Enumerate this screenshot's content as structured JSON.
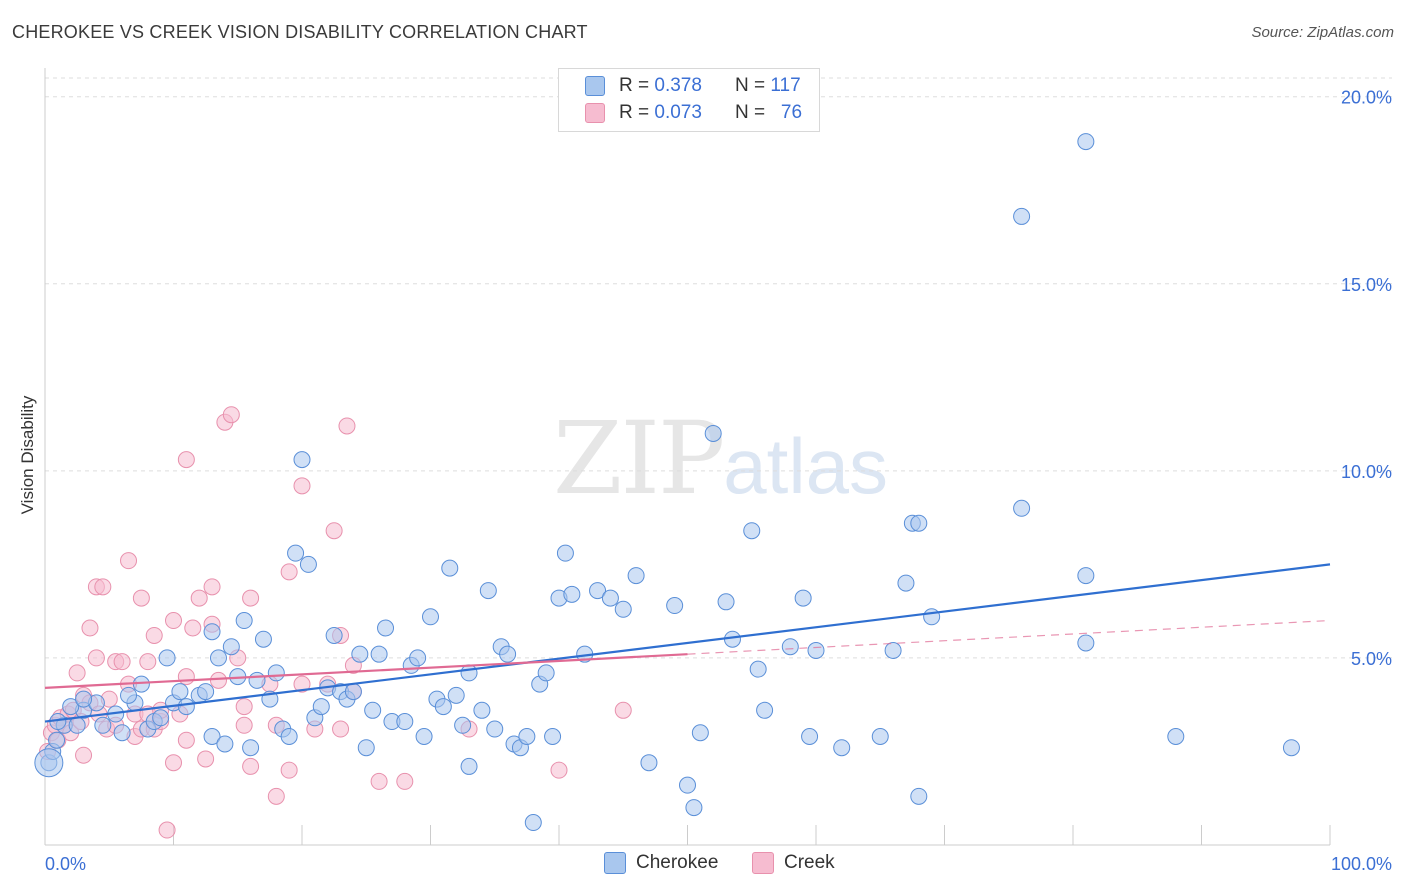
{
  "title": "CHEROKEE VS CREEK VISION DISABILITY CORRELATION CHART",
  "source": "Source: ZipAtlas.com",
  "watermark": {
    "zip": "ZIP",
    "atlas": "atlas"
  },
  "legend_top": {
    "rows": [
      {
        "r_label": "R =",
        "r_value": "0.378",
        "n_label": "N =",
        "n_value": "117"
      },
      {
        "r_label": "R =",
        "r_value": "0.073",
        "n_label": "N =",
        "n_value": "76"
      }
    ]
  },
  "colors": {
    "cherokee_fill": "#a9c7ee",
    "cherokee_stroke": "#5a8fd8",
    "cherokee_line": "#2f6fd0",
    "creek_fill": "#f6bcd0",
    "creek_stroke": "#e891ad",
    "creek_line": "#e06a93",
    "axis_label": "#3b6fd4",
    "grid": "#dddddd"
  },
  "chart_data": {
    "type": "scatter",
    "title": "CHEROKEE VS CREEK VISION DISABILITY CORRELATION CHART",
    "xlabel": "",
    "ylabel": "Vision Disability",
    "xlim": [
      0,
      100
    ],
    "ylim": [
      0,
      20
    ],
    "x_tick_labels": [
      "0.0%",
      "100.0%"
    ],
    "y_ticks": [
      5,
      10,
      15,
      20
    ],
    "y_tick_labels": [
      "5.0%",
      "10.0%",
      "15.0%",
      "20.0%"
    ],
    "grid": true,
    "legend_position": "top-center",
    "series": [
      {
        "name": "Cherokee",
        "r": 0.378,
        "n": 117,
        "trend": {
          "x": [
            0,
            100
          ],
          "y": [
            3.3,
            7.5
          ]
        },
        "points": [
          [
            0.3,
            2.2
          ],
          [
            0.6,
            2.5
          ],
          [
            0.9,
            2.8
          ],
          [
            1.5,
            3.2
          ],
          [
            2.5,
            3.2
          ],
          [
            3,
            3.6
          ],
          [
            4,
            3.8
          ],
          [
            4.5,
            3.2
          ],
          [
            5.5,
            3.5
          ],
          [
            6,
            3
          ],
          [
            7,
            3.8
          ],
          [
            7.5,
            4.3
          ],
          [
            8,
            3.1
          ],
          [
            8.5,
            3.3
          ],
          [
            9,
            3.4
          ],
          [
            9.5,
            5
          ],
          [
            10,
            3.8
          ],
          [
            10.5,
            4.1
          ],
          [
            11,
            3.7
          ],
          [
            12,
            4
          ],
          [
            12.5,
            4.1
          ],
          [
            13,
            2.9
          ],
          [
            13,
            5.7
          ],
          [
            13.5,
            5
          ],
          [
            14,
            2.7
          ],
          [
            14.5,
            5.3
          ],
          [
            15,
            4.5
          ],
          [
            15.5,
            6
          ],
          [
            16,
            2.6
          ],
          [
            16.5,
            4.4
          ],
          [
            17,
            5.5
          ],
          [
            17.5,
            3.9
          ],
          [
            18,
            4.6
          ],
          [
            18.5,
            3.1
          ],
          [
            19,
            2.9
          ],
          [
            19.5,
            7.8
          ],
          [
            20,
            10.3
          ],
          [
            20.5,
            7.5
          ],
          [
            21,
            3.4
          ],
          [
            21.5,
            3.7
          ],
          [
            22,
            4.2
          ],
          [
            22.5,
            5.6
          ],
          [
            23,
            4.1
          ],
          [
            23.5,
            3.9
          ],
          [
            24,
            4.1
          ],
          [
            24.5,
            5.1
          ],
          [
            25,
            2.6
          ],
          [
            25.5,
            3.6
          ],
          [
            26,
            5.1
          ],
          [
            26.5,
            5.8
          ],
          [
            27,
            3.3
          ],
          [
            28,
            3.3
          ],
          [
            28.5,
            4.8
          ],
          [
            29,
            5
          ],
          [
            29.5,
            2.9
          ],
          [
            30,
            6.1
          ],
          [
            30.5,
            3.9
          ],
          [
            31,
            3.7
          ],
          [
            31.5,
            7.4
          ],
          [
            32,
            4
          ],
          [
            32.5,
            3.2
          ],
          [
            33,
            2.1
          ],
          [
            33,
            4.6
          ],
          [
            34,
            3.6
          ],
          [
            34.5,
            6.8
          ],
          [
            35,
            3.1
          ],
          [
            35.5,
            5.3
          ],
          [
            36,
            5.1
          ],
          [
            36.5,
            2.7
          ],
          [
            37,
            2.6
          ],
          [
            37.5,
            2.9
          ],
          [
            38,
            0.6
          ],
          [
            38.5,
            4.3
          ],
          [
            39,
            4.6
          ],
          [
            39.5,
            2.9
          ],
          [
            40,
            6.6
          ],
          [
            40.5,
            7.8
          ],
          [
            41,
            6.7
          ],
          [
            42,
            5.1
          ],
          [
            43,
            6.8
          ],
          [
            44,
            6.6
          ],
          [
            45,
            6.3
          ],
          [
            46,
            7.2
          ],
          [
            47,
            2.2
          ],
          [
            49,
            6.4
          ],
          [
            50,
            1.6
          ],
          [
            50.5,
            1
          ],
          [
            51,
            3
          ],
          [
            52,
            11
          ],
          [
            53,
            6.5
          ],
          [
            53.5,
            5.5
          ],
          [
            55,
            8.4
          ],
          [
            55.5,
            4.7
          ],
          [
            56,
            3.6
          ],
          [
            58,
            5.3
          ],
          [
            59,
            6.6
          ],
          [
            59.5,
            2.9
          ],
          [
            60,
            5.2
          ],
          [
            62,
            2.6
          ],
          [
            65,
            2.9
          ],
          [
            66,
            5.2
          ],
          [
            67,
            7
          ],
          [
            67.5,
            8.6
          ],
          [
            68,
            8.6
          ],
          [
            68,
            1.3
          ],
          [
            69,
            6.1
          ],
          [
            76,
            9
          ],
          [
            76,
            16.8
          ],
          [
            81,
            7.2
          ],
          [
            81,
            5.4
          ],
          [
            81,
            18.8
          ],
          [
            88,
            2.9
          ],
          [
            97,
            2.6
          ],
          [
            1,
            3.3
          ],
          [
            2,
            3.7
          ],
          [
            3,
            3.9
          ],
          [
            6.5,
            4
          ]
        ]
      },
      {
        "name": "Creek",
        "r": 0.073,
        "n": 76,
        "trend": {
          "x": [
            0,
            50
          ],
          "y": [
            4.2,
            5.1
          ]
        },
        "trend_dashed": {
          "x": [
            50,
            100
          ],
          "y": [
            5.1,
            6.0
          ]
        },
        "points": [
          [
            0.2,
            2.5
          ],
          [
            0.5,
            3
          ],
          [
            0.8,
            3.2
          ],
          [
            1,
            2.8
          ],
          [
            1.2,
            3.4
          ],
          [
            1.5,
            3.2
          ],
          [
            1.8,
            3.5
          ],
          [
            2,
            3
          ],
          [
            2.2,
            3.6
          ],
          [
            2.5,
            4.6
          ],
          [
            2.8,
            3.3
          ],
          [
            3,
            4
          ],
          [
            3,
            2.4
          ],
          [
            3.5,
            5.8
          ],
          [
            3.5,
            3.8
          ],
          [
            4,
            6.9
          ],
          [
            4,
            5
          ],
          [
            4.2,
            3.5
          ],
          [
            4.5,
            6.9
          ],
          [
            4.8,
            3.1
          ],
          [
            5,
            3.9
          ],
          [
            5.5,
            3.2
          ],
          [
            5.5,
            4.9
          ],
          [
            6,
            4.9
          ],
          [
            6.5,
            7.6
          ],
          [
            6.5,
            4.3
          ],
          [
            7,
            3.5
          ],
          [
            7,
            2.9
          ],
          [
            7.5,
            6.6
          ],
          [
            7.5,
            3.1
          ],
          [
            8,
            4.9
          ],
          [
            8,
            3.5
          ],
          [
            8.5,
            5.6
          ],
          [
            8.5,
            3.1
          ],
          [
            9,
            3.3
          ],
          [
            9,
            3.6
          ],
          [
            9.5,
            0.4
          ],
          [
            10,
            2.2
          ],
          [
            10,
            6
          ],
          [
            10.5,
            3.5
          ],
          [
            11,
            2.8
          ],
          [
            11,
            10.3
          ],
          [
            11,
            4.5
          ],
          [
            11.5,
            5.8
          ],
          [
            12,
            6.6
          ],
          [
            12.5,
            2.3
          ],
          [
            13,
            6.9
          ],
          [
            13,
            5.9
          ],
          [
            13.5,
            4.4
          ],
          [
            14,
            11.3
          ],
          [
            14.5,
            11.5
          ],
          [
            15,
            5
          ],
          [
            15.5,
            3.7
          ],
          [
            15.5,
            3.2
          ],
          [
            16,
            6.6
          ],
          [
            16,
            2.1
          ],
          [
            17.5,
            4.3
          ],
          [
            18,
            3.2
          ],
          [
            18,
            1.3
          ],
          [
            19,
            2
          ],
          [
            19,
            7.3
          ],
          [
            20,
            4.3
          ],
          [
            20,
            9.6
          ],
          [
            21,
            3.1
          ],
          [
            22,
            4.3
          ],
          [
            22.5,
            8.4
          ],
          [
            23,
            5.6
          ],
          [
            23,
            3.1
          ],
          [
            23.5,
            11.2
          ],
          [
            24,
            4.8
          ],
          [
            24,
            4.1
          ],
          [
            26,
            1.7
          ],
          [
            28,
            1.7
          ],
          [
            33,
            3.1
          ],
          [
            40,
            2
          ],
          [
            45,
            3.6
          ]
        ]
      }
    ]
  },
  "bottom_legend": {
    "items": [
      {
        "label": "Cherokee"
      },
      {
        "label": "Creek"
      }
    ]
  }
}
